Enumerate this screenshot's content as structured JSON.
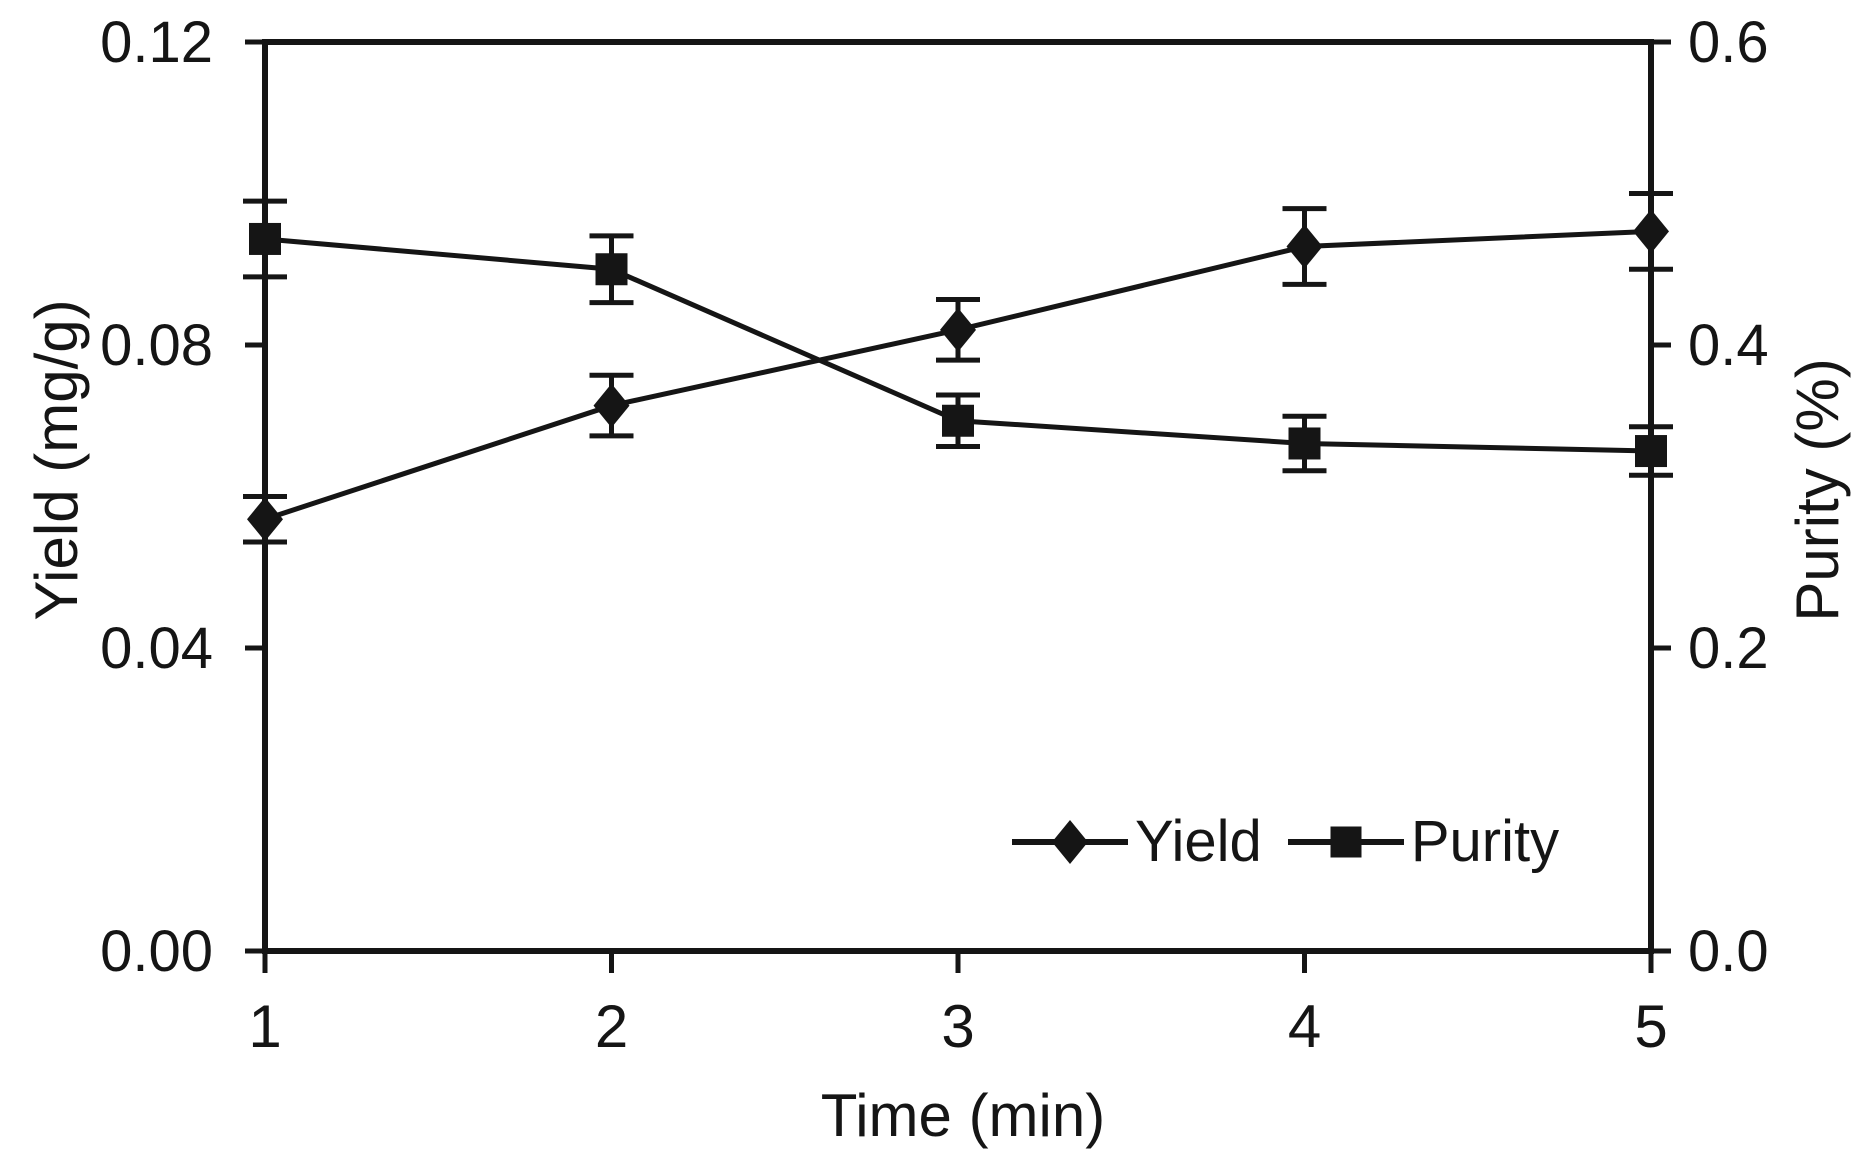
{
  "figure": {
    "background": "#ffffff",
    "ink_color": "#151515"
  },
  "chart_data": {
    "type": "line",
    "title": "",
    "xlabel": "Time (min)",
    "ylabel_left": "Yield (mg/g)",
    "ylabel_right": "Purity (%)",
    "x": [
      1,
      2,
      3,
      4,
      5
    ],
    "x_range": [
      1,
      5
    ],
    "x_tick_labels": [
      "1",
      "2",
      "3",
      "4",
      "5"
    ],
    "y_left": {
      "min": 0,
      "max": 0.12,
      "tick_values": [
        0,
        0.04,
        0.08,
        0.12
      ],
      "tick_labels": [
        "0.00",
        "0.04",
        "0.08",
        "0.12"
      ]
    },
    "y_right": {
      "min": 0,
      "max": 0.6,
      "tick_values": [
        0,
        0.2,
        0.4,
        0.6
      ],
      "tick_labels": [
        "0.0",
        "0.2",
        "0.4",
        "0.6"
      ]
    },
    "grid": false,
    "legend_position": "inside-bottom-right",
    "series": [
      {
        "name": "Yield",
        "axis": "left",
        "marker": "diamond",
        "values": [
          0.057,
          0.072,
          0.082,
          0.093,
          0.095
        ],
        "error_bars": [
          0.003,
          0.004,
          0.004,
          0.005,
          0.005
        ]
      },
      {
        "name": "Purity",
        "axis": "right",
        "marker": "square",
        "values": [
          0.47,
          0.45,
          0.35,
          0.335,
          0.33
        ],
        "error_bars": [
          0.025,
          0.022,
          0.017,
          0.018,
          0.016
        ]
      }
    ]
  }
}
